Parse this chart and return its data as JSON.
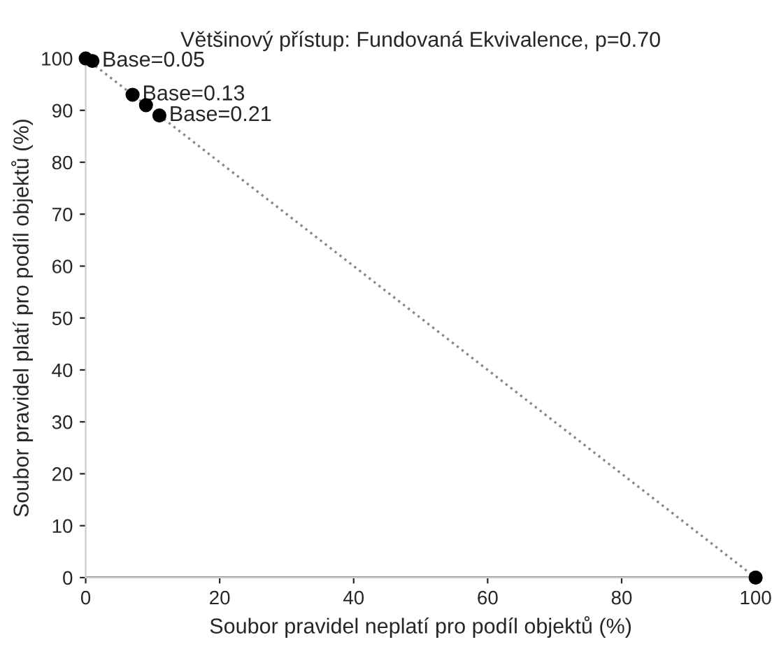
{
  "chart_data": {
    "type": "scatter",
    "title": "Většinový přístup: Fundovaná Ekvivalence, p=0.70",
    "xlabel": "Soubor pravidel neplatí pro podíl objektů (%)",
    "ylabel": "Soubor pravidel platí pro podíl objektů (%)",
    "series": [
      {
        "type": "line",
        "color": "#888888",
        "line_style": "dotted",
        "marker": "none",
        "x": [
          0,
          100
        ],
        "values": [
          100,
          0
        ]
      },
      {
        "type": "line",
        "color": "#555555",
        "line_style": "solid",
        "marker": "none",
        "x": [
          0,
          100
        ],
        "values": [
          0,
          0
        ]
      },
      {
        "color": "#000000",
        "marker": "circle",
        "x": [
          0,
          1,
          7,
          9,
          11,
          100
        ],
        "values": [
          100,
          99.5,
          93,
          91,
          89,
          0
        ]
      }
    ],
    "annotations": [
      {
        "text": "Base=0.05",
        "x": 1,
        "y": 99.5
      },
      {
        "text": "Base=0.13",
        "x": 7,
        "y": 93
      },
      {
        "text": "Base=0.21",
        "x": 11,
        "y": 89
      }
    ],
    "xlim": [
      0,
      100
    ],
    "ylim": [
      0,
      100
    ],
    "xticks": [
      0,
      20,
      40,
      60,
      80,
      100
    ],
    "yticks": [
      0,
      10,
      20,
      30,
      40,
      50,
      60,
      70,
      80,
      90,
      100
    ],
    "grid": false,
    "legend": false
  }
}
